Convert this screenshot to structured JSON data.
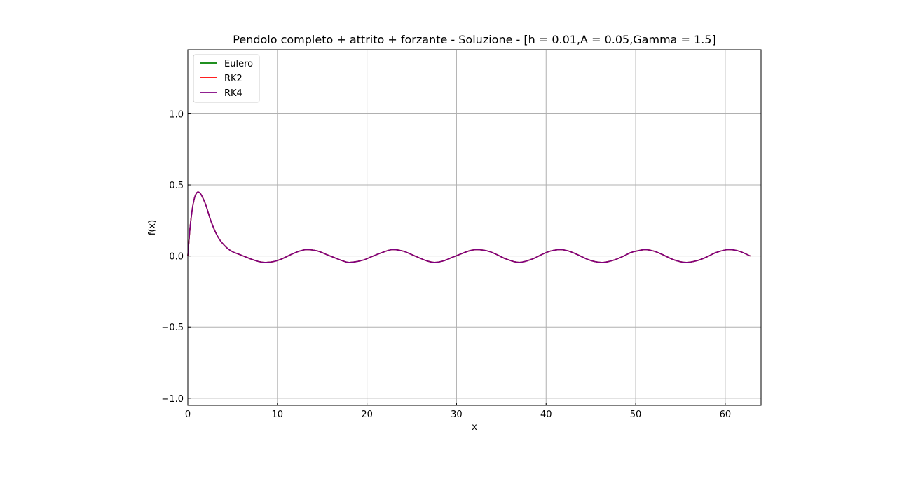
{
  "chart_data": {
    "type": "line",
    "title": "Pendolo completo + attrito + forzante - Soluzione - [h = 0.01,A = 0.05,Gamma = 1.5]",
    "xlabel": "x",
    "ylabel": "f(x)",
    "xlim": [
      0,
      64
    ],
    "ylim": [
      -1.05,
      1.45
    ],
    "xticks": [
      0,
      10,
      20,
      30,
      40,
      50,
      60
    ],
    "xtick_labels": [
      "0",
      "10",
      "20",
      "30",
      "40",
      "50",
      "60"
    ],
    "yticks": [
      -1.0,
      -0.5,
      0.0,
      0.5,
      1.0
    ],
    "ytick_labels": [
      "−1.0",
      "−0.5",
      "0.0",
      "0.5",
      "1.0"
    ],
    "grid": true,
    "legend_position": "top-left",
    "x": [
      0,
      0.25,
      0.5,
      0.75,
      1.0,
      1.2,
      1.5,
      2.0,
      2.5,
      3.0,
      3.5,
      4.0,
      4.5,
      5.0,
      6.0,
      7.0,
      8.0,
      8.6,
      9.5,
      10.5,
      11.5,
      12.5,
      13.3,
      14.5,
      15.5,
      16.5,
      17.5,
      18.1,
      19.5,
      20.5,
      21.5,
      22.8,
      24.0,
      25.0,
      26.5,
      27.5,
      28.5,
      29.5,
      30.5,
      31.5,
      32.3,
      33.5,
      34.5,
      35.5,
      37.0,
      38.5,
      39.5,
      40.5,
      41.6,
      42.5,
      43.5,
      44.5,
      45.5,
      46.4,
      47.5,
      48.5,
      49.5,
      50.5,
      51.1,
      52.0,
      53.0,
      54.0,
      55.0,
      55.8,
      57.0,
      58.0,
      59.0,
      60.3,
      61.5,
      62.8
    ],
    "series": [
      {
        "name": "Eulero",
        "color": "#008000",
        "values": [
          0.0,
          0.2,
          0.33,
          0.41,
          0.445,
          0.45,
          0.43,
          0.36,
          0.26,
          0.18,
          0.12,
          0.08,
          0.05,
          0.03,
          0.005,
          -0.02,
          -0.04,
          -0.045,
          -0.04,
          -0.02,
          0.01,
          0.035,
          0.045,
          0.035,
          0.01,
          -0.015,
          -0.038,
          -0.045,
          -0.03,
          -0.005,
          0.02,
          0.045,
          0.035,
          0.01,
          -0.03,
          -0.045,
          -0.035,
          -0.01,
          0.015,
          0.038,
          0.045,
          0.035,
          0.01,
          -0.02,
          -0.045,
          -0.02,
          0.01,
          0.035,
          0.045,
          0.035,
          0.01,
          -0.02,
          -0.04,
          -0.045,
          -0.03,
          -0.005,
          0.025,
          0.04,
          0.045,
          0.035,
          0.01,
          -0.02,
          -0.04,
          -0.045,
          -0.03,
          -0.005,
          0.025,
          0.045,
          0.035,
          0.0
        ]
      },
      {
        "name": "RK2",
        "color": "#ff0000",
        "values": [
          0.0,
          0.2,
          0.33,
          0.41,
          0.445,
          0.45,
          0.43,
          0.36,
          0.26,
          0.18,
          0.12,
          0.08,
          0.05,
          0.03,
          0.005,
          -0.02,
          -0.04,
          -0.045,
          -0.04,
          -0.02,
          0.01,
          0.035,
          0.045,
          0.035,
          0.01,
          -0.015,
          -0.038,
          -0.045,
          -0.03,
          -0.005,
          0.02,
          0.045,
          0.035,
          0.01,
          -0.03,
          -0.045,
          -0.035,
          -0.01,
          0.015,
          0.038,
          0.045,
          0.035,
          0.01,
          -0.02,
          -0.045,
          -0.02,
          0.01,
          0.035,
          0.045,
          0.035,
          0.01,
          -0.02,
          -0.04,
          -0.045,
          -0.03,
          -0.005,
          0.025,
          0.04,
          0.045,
          0.035,
          0.01,
          -0.02,
          -0.04,
          -0.045,
          -0.03,
          -0.005,
          0.025,
          0.045,
          0.035,
          0.0
        ]
      },
      {
        "name": "RK4",
        "color": "#800080",
        "values": [
          0.0,
          0.2,
          0.33,
          0.41,
          0.445,
          0.45,
          0.43,
          0.36,
          0.26,
          0.18,
          0.12,
          0.08,
          0.05,
          0.03,
          0.005,
          -0.02,
          -0.04,
          -0.045,
          -0.04,
          -0.02,
          0.01,
          0.035,
          0.045,
          0.035,
          0.01,
          -0.015,
          -0.038,
          -0.045,
          -0.03,
          -0.005,
          0.02,
          0.045,
          0.035,
          0.01,
          -0.03,
          -0.045,
          -0.035,
          -0.01,
          0.015,
          0.038,
          0.045,
          0.035,
          0.01,
          -0.02,
          -0.045,
          -0.02,
          0.01,
          0.035,
          0.045,
          0.035,
          0.01,
          -0.02,
          -0.04,
          -0.045,
          -0.03,
          -0.005,
          0.025,
          0.04,
          0.045,
          0.035,
          0.01,
          -0.02,
          -0.04,
          -0.045,
          -0.03,
          -0.005,
          0.025,
          0.045,
          0.035,
          0.0
        ]
      }
    ]
  }
}
